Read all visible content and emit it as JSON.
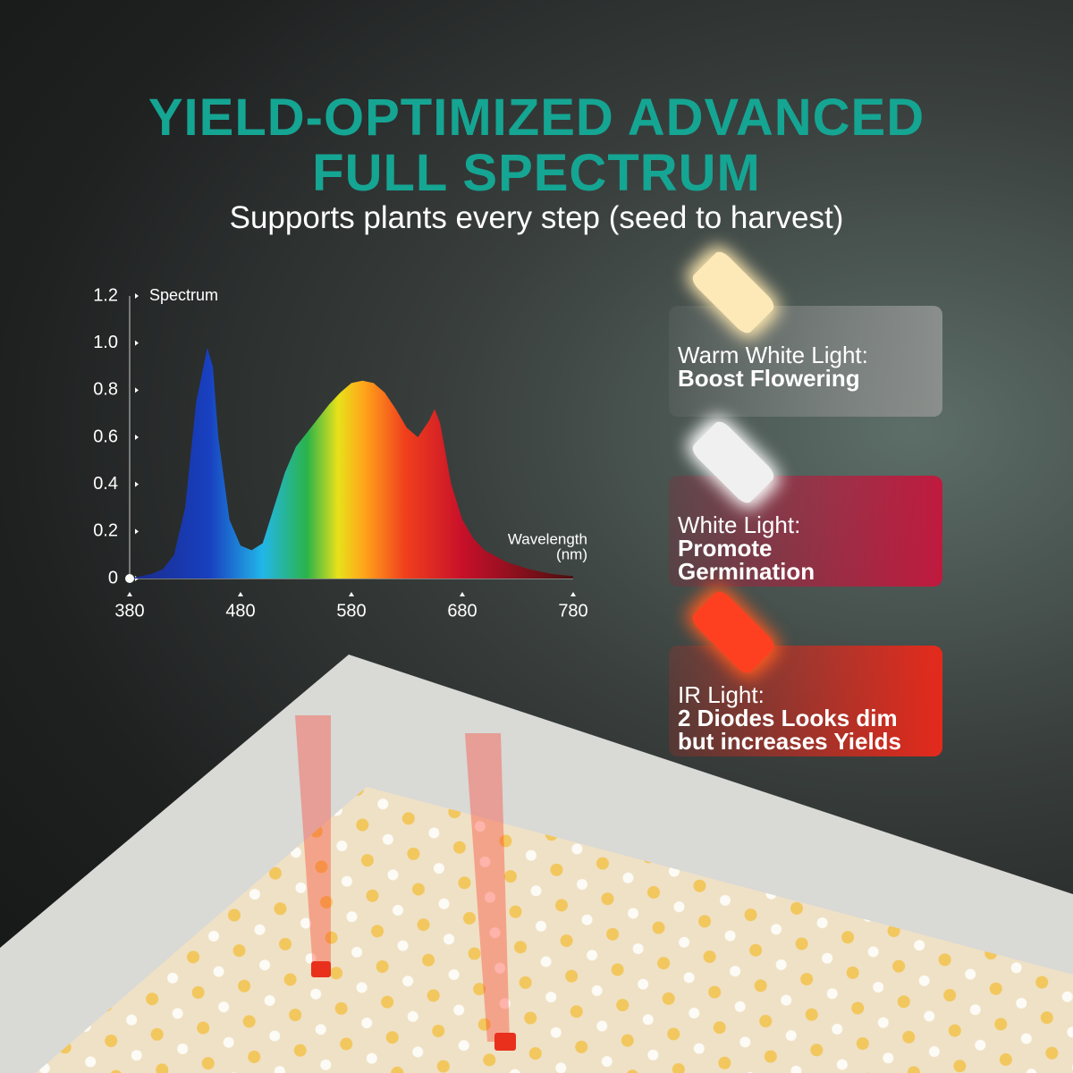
{
  "header": {
    "title_line1": "YIELD-OPTIMIZED ADVANCED",
    "title_line2": "FULL SPECTRUM",
    "subtitle": "Supports plants every step (seed to harvest)"
  },
  "chart_data": {
    "type": "area",
    "y_label": "Spectrum",
    "x_label": "Wavelength",
    "x_unit": "(nm)",
    "x": [
      380,
      390,
      400,
      410,
      420,
      430,
      440,
      450,
      455,
      460,
      470,
      480,
      490,
      500,
      510,
      520,
      530,
      540,
      550,
      560,
      570,
      580,
      590,
      600,
      610,
      620,
      630,
      640,
      650,
      655,
      660,
      670,
      680,
      690,
      700,
      720,
      740,
      760,
      780
    ],
    "values": [
      0,
      0.01,
      0.02,
      0.04,
      0.1,
      0.3,
      0.75,
      0.98,
      0.9,
      0.6,
      0.25,
      0.14,
      0.12,
      0.15,
      0.3,
      0.45,
      0.56,
      0.62,
      0.68,
      0.74,
      0.79,
      0.83,
      0.84,
      0.83,
      0.79,
      0.72,
      0.64,
      0.6,
      0.67,
      0.72,
      0.66,
      0.4,
      0.25,
      0.17,
      0.12,
      0.07,
      0.04,
      0.02,
      0.01
    ],
    "xlim": [
      380,
      780
    ],
    "ylim": [
      0,
      1.2
    ],
    "xticks": [
      380,
      480,
      580,
      680,
      780
    ],
    "yticks": [
      0,
      0.2,
      0.4,
      0.6,
      {
        "value": 0.8,
        "label": "0.8"
      },
      {
        "value": 1,
        "label": "1.0"
      },
      1.2
    ]
  },
  "features": [
    {
      "label": "Warm White Light:",
      "detail": "Boost Flowering"
    },
    {
      "label": "White Light:",
      "detail": "Promote Germination"
    },
    {
      "label": "IR Light:",
      "detail": "2 Diodes Looks dim but increases Yields"
    }
  ]
}
